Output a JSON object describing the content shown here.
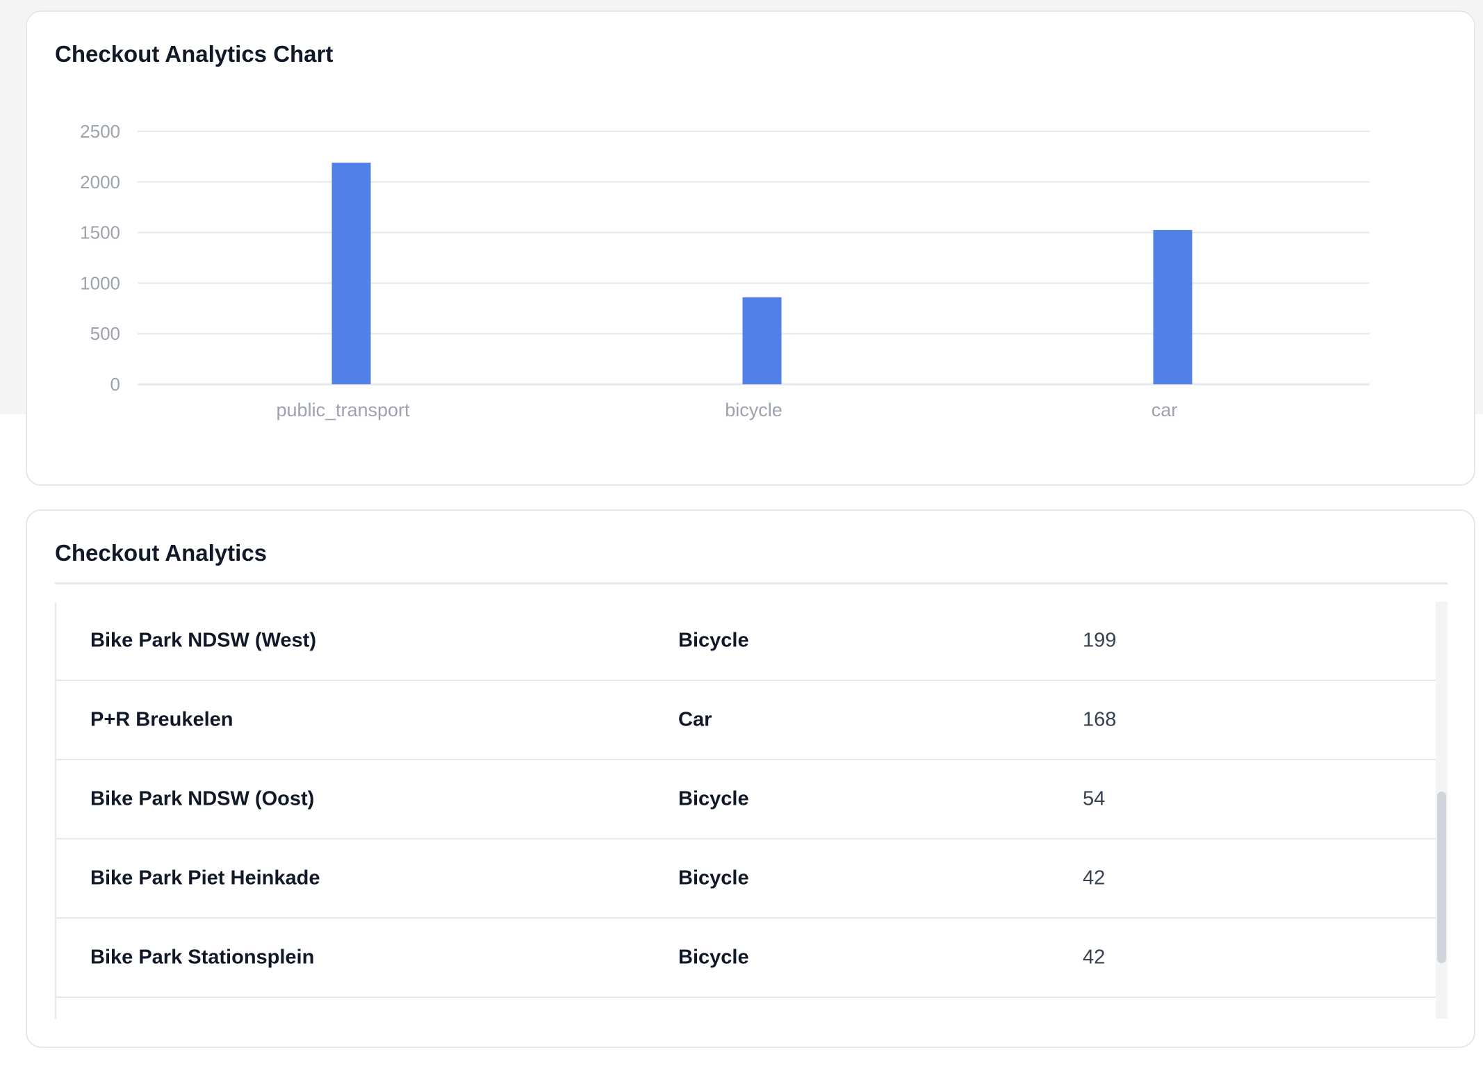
{
  "colors": {
    "bar": "#5080e8",
    "grid": "#e5e7eb",
    "axis_text": "#9ca3af",
    "page_bg_top": "#f4f4f5"
  },
  "chart_card": {
    "title": "Checkout Analytics Chart"
  },
  "chart_data": {
    "type": "bar",
    "categories": [
      "public_transport",
      "bicycle",
      "car"
    ],
    "values": [
      2190,
      860,
      1525
    ],
    "ylim": [
      0,
      2500
    ],
    "yticks": [
      "0",
      "500",
      "1000",
      "1500",
      "2000",
      "2500"
    ],
    "grid": true,
    "legend": "none",
    "title": "",
    "xlabel": "",
    "ylabel": ""
  },
  "table_card": {
    "title": "Checkout Analytics",
    "rows": [
      {
        "name": "Bike Park NDSW (West)",
        "type": "Bicycle",
        "count": "199"
      },
      {
        "name": "P+R Breukelen",
        "type": "Car",
        "count": "168"
      },
      {
        "name": "Bike Park NDSW (Oost)",
        "type": "Bicycle",
        "count": "54"
      },
      {
        "name": "Bike Park Piet Heinkade",
        "type": "Bicycle",
        "count": "42"
      },
      {
        "name": "Bike Park Stationsplein",
        "type": "Bicycle",
        "count": "42"
      }
    ]
  }
}
